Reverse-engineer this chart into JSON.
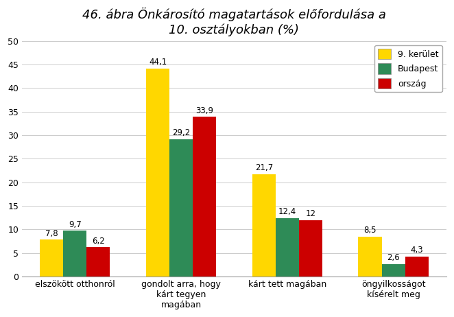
{
  "title": "46. ábra Önkárosító magatartások előfordulása a\n10. osztályokban (%)",
  "categories": [
    "elszökött otthonról",
    "gondolt arra, hogy\nkárt tegyen\nmagában",
    "kárt tett magában",
    "öngyilkosságot\nkísérelt meg"
  ],
  "series": {
    "9. kerület": [
      7.8,
      44.1,
      21.7,
      8.5
    ],
    "Budapest": [
      9.7,
      29.2,
      12.4,
      2.6
    ],
    "ország": [
      6.2,
      33.9,
      12.0,
      4.3
    ]
  },
  "colors": {
    "9. kerület": "#FFD700",
    "Budapest": "#2E8B57",
    "ország": "#CC0000"
  },
  "ylim": [
    0,
    50
  ],
  "yticks": [
    0,
    5,
    10,
    15,
    20,
    25,
    30,
    35,
    40,
    45,
    50
  ],
  "bar_width": 0.22,
  "legend_labels": [
    "9. kerület",
    "Budapest",
    "ország"
  ],
  "background_color": "#ffffff",
  "title_fontsize": 13,
  "label_fontsize": 8.5,
  "tick_fontsize": 9
}
